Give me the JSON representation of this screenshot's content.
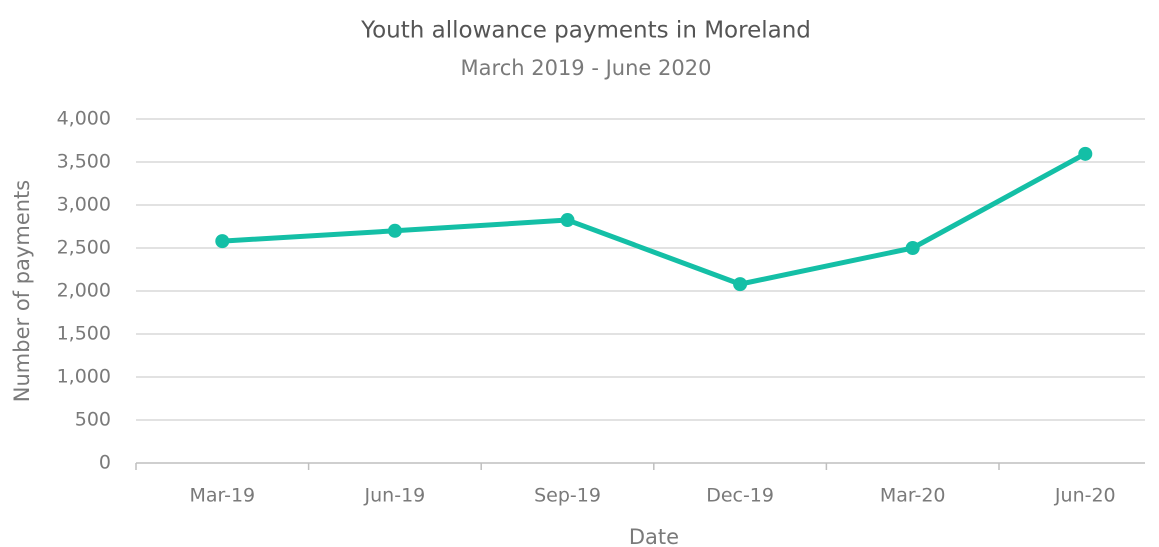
{
  "chart_data": {
    "type": "line",
    "title": "Youth allowance payments in Moreland",
    "subtitle": "March 2019 - June 2020",
    "x_label": "Date",
    "y_label": "Number of payments",
    "categories": [
      "Mar-19",
      "Jun-19",
      "Sep-19",
      "Dec-19",
      "Mar-20",
      "Jun-20"
    ],
    "series": [
      {
        "name": "Youth allowance payments",
        "color": "#14bfa6",
        "values": [
          2580,
          2700,
          2825,
          2080,
          2500,
          3595
        ]
      }
    ],
    "ylim": [
      0,
      4000
    ],
    "yticks": [
      0,
      500,
      {
        "value": 1000,
        "label": "1,000"
      },
      {
        "value": 1500,
        "label": "1,500"
      },
      {
        "value": 2000,
        "label": "2,000"
      },
      {
        "value": 2500,
        "label": "2,500"
      },
      {
        "value": 3000,
        "label": "3,000"
      },
      {
        "value": 3500,
        "label": "3,500"
      },
      {
        "value": 4000,
        "label": "4,000"
      }
    ],
    "grid": true
  }
}
